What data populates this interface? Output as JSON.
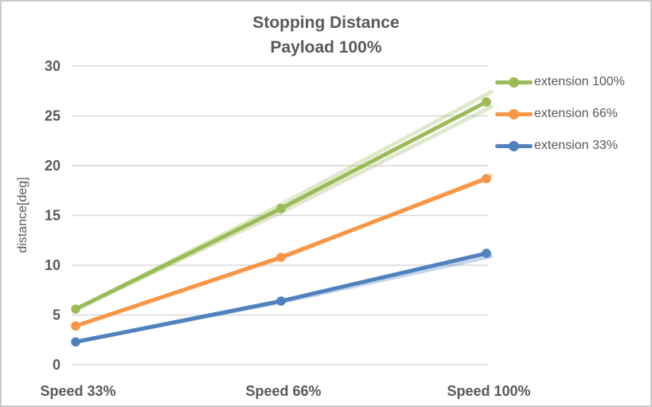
{
  "frame": {
    "background": "#FFFFFF",
    "border_color": "#C9C9C9"
  },
  "chart_data": {
    "type": "line",
    "title": "Stopping Distance",
    "subtitle": "Payload 100%",
    "categories": [
      "Speed 33%",
      "Speed 66%",
      "Speed 100%"
    ],
    "series": [
      {
        "name": "extension 100%",
        "color": "#9BBB59",
        "values": [
          5.6,
          15.7,
          26.4
        ]
      },
      {
        "name": "extension 66%",
        "color": "#F79646",
        "values": [
          3.9,
          10.8,
          18.7
        ]
      },
      {
        "name": "extension 33%",
        "color": "#4F81BD",
        "values": [
          2.3,
          6.4,
          11.2
        ]
      }
    ],
    "shadow_series": [
      {
        "parent": "extension 100%",
        "color": "#9BBB59",
        "values": [
          5.5,
          16.1,
          27.4
        ]
      },
      {
        "parent": "extension 100%",
        "color": "#9BBB59",
        "values": [
          5.6,
          15.3,
          25.9
        ]
      },
      {
        "parent": "extension 66%",
        "color": "#F79646",
        "values": [
          3.9,
          10.7,
          19.0
        ]
      },
      {
        "parent": "extension 33%",
        "color": "#4F81BD",
        "values": [
          2.3,
          6.3,
          10.9
        ]
      }
    ],
    "xlabel": "",
    "ylabel": "distance[deg]",
    "ylim": [
      0,
      30
    ],
    "yticks": [
      0,
      5,
      10,
      15,
      20,
      25,
      30
    ],
    "grid": true,
    "gridline_color": "#D9D9D9",
    "axis_text_color": "#595959",
    "title_color": "#595959",
    "legend_position": "right",
    "marker": "circle"
  }
}
